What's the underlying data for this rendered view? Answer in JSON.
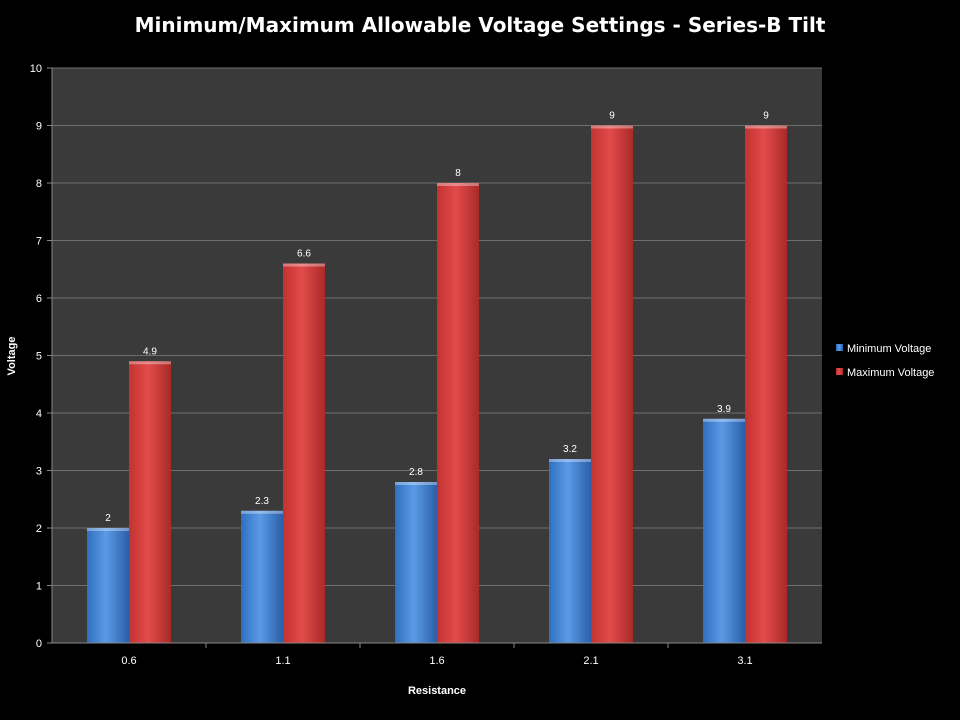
{
  "chart_data": {
    "type": "bar",
    "title": "Minimum/Maximum Allowable Voltage Settings - Series-B Tilt",
    "xlabel": "Resistance",
    "ylabel": "Voltage",
    "categories": [
      "0.6",
      "1.1",
      "1.6",
      "2.1",
      "3.1"
    ],
    "series": [
      {
        "name": "Minimum Voltage",
        "values": [
          2,
          2.3,
          2.8,
          3.2,
          3.9
        ],
        "color": "#4a86d4"
      },
      {
        "name": "Maximum Voltage",
        "values": [
          4.9,
          6.6,
          8,
          9,
          9
        ],
        "color": "#d94140"
      }
    ],
    "data_labels": [
      [
        "2",
        "2.3",
        "2.8",
        "3.2",
        "3.9"
      ],
      [
        "4.9",
        "6.6",
        "8",
        "9",
        "9"
      ]
    ],
    "ylim": [
      0,
      10
    ],
    "yticks": [
      "0",
      "1",
      "2",
      "3",
      "4",
      "5",
      "6",
      "7",
      "8",
      "9",
      "10"
    ],
    "grid": true,
    "legend": "right",
    "colors": {
      "background": "#000000",
      "plot_area": "#3a3a3a",
      "gridline": "#6e6e6e"
    }
  }
}
